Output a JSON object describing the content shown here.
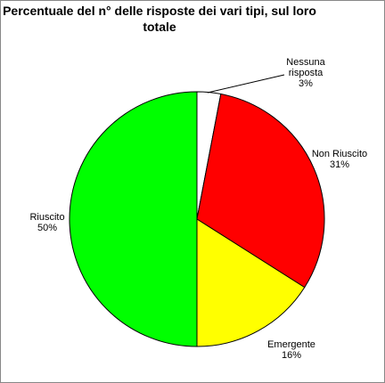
{
  "chart_data": {
    "type": "pie",
    "title": "Percentuale del n° delle risposte dei vari tipi, sul loro totale",
    "categories": [
      "Nessuna risposta",
      "Non Riuscito",
      "Emergente",
      "Riuscito"
    ],
    "values": [
      3,
      31,
      16,
      50
    ],
    "value_labels": [
      "3%",
      "31%",
      "16%",
      "50%"
    ],
    "colors": [
      "#ffffff",
      "#ff0000",
      "#ffff00",
      "#00ff00"
    ]
  }
}
